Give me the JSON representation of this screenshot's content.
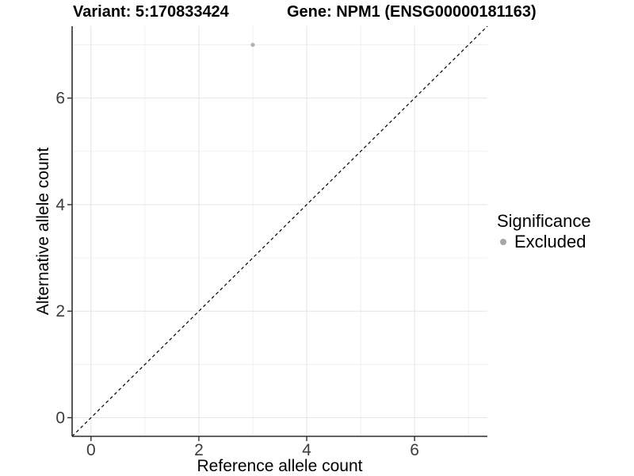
{
  "chart_data": {
    "type": "scatter",
    "variant_title": "Variant: 5:170833424",
    "gene_title": "Gene: NPM1 (ENSG00000181163)",
    "xlabel": "Reference allele count",
    "ylabel": "Alternative allele count",
    "xlim": [
      -0.35,
      7.35
    ],
    "ylim": [
      -0.35,
      7.35
    ],
    "x_major_ticks": [
      0,
      2,
      4,
      6
    ],
    "y_major_ticks": [
      0,
      2,
      4,
      6
    ],
    "x_minor_grid": [
      1,
      3,
      5,
      7
    ],
    "y_minor_grid": [
      1,
      3,
      5,
      7
    ],
    "grid": "on",
    "legend_position": "right",
    "reference_line": {
      "type": "identity",
      "style": "dashed",
      "from": [
        -0.35,
        -0.35
      ],
      "to": [
        7.35,
        7.35
      ]
    },
    "series": [
      {
        "name": "Excluded",
        "color": "#b3b3b3",
        "points": [
          {
            "x": 3,
            "y": 7
          }
        ]
      }
    ],
    "legend": {
      "title": "Significance",
      "items": [
        {
          "label": "Excluded",
          "color": "#a6a6a6",
          "marker": "circle"
        }
      ]
    }
  },
  "colors": {
    "background": "#ffffff",
    "grid_major": "#e4e4e4",
    "grid_minor": "#f0f0f0",
    "axis_line": "#2f2f2f",
    "tick_text": "#3c3c3c",
    "reference_line": "#000000",
    "point": "#b3b3b3",
    "legend_dot": "#a6a6a6"
  }
}
